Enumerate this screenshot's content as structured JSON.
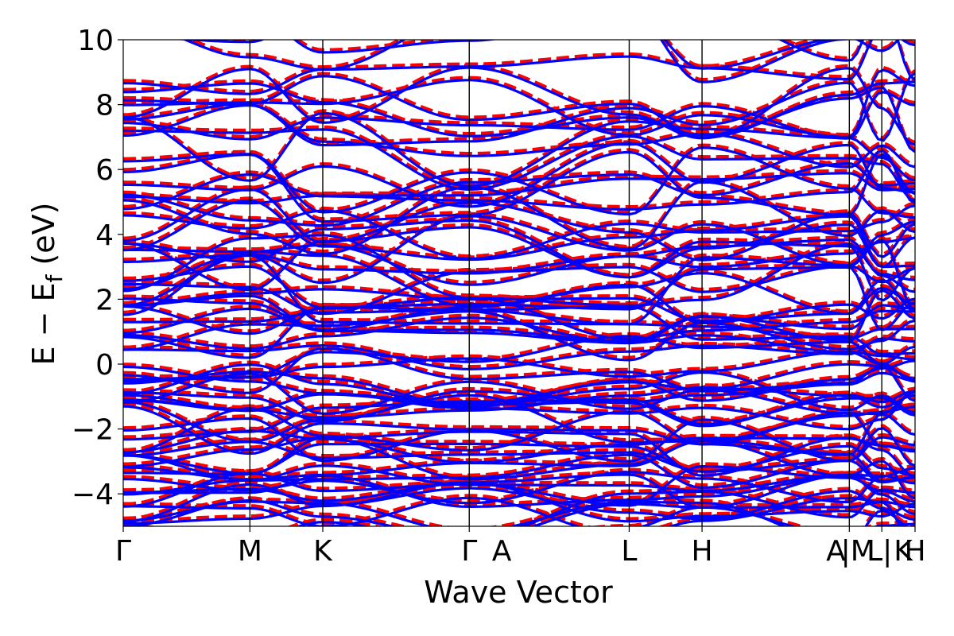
{
  "chart_data": {
    "type": "line",
    "title": "",
    "xlabel": "Wave Vector",
    "ylabel": "E − E_f (eV)",
    "ylabel_main": "E − E",
    "ylabel_sub": "f",
    "ylabel_unit": " (eV)",
    "ylim": [
      -5,
      10
    ],
    "yticks": [
      -4,
      -2,
      0,
      2,
      4,
      6,
      8,
      10
    ],
    "ytick_labels": [
      "−4",
      "−2",
      "0",
      "2",
      "4",
      "6",
      "8",
      "10"
    ],
    "xlim": [
      0,
      1
    ],
    "grid": false,
    "legend": "none",
    "kpoints": [
      {
        "label": "Γ",
        "x": 0.0
      },
      {
        "label": "M",
        "x": 0.16
      },
      {
        "label": "K",
        "x": 0.252
      },
      {
        "label": "Γ|A",
        "x": 0.437,
        "labels": [
          "Γ",
          "A"
        ]
      },
      {
        "label": "L",
        "x": 0.639
      },
      {
        "label": "H",
        "x": 0.731
      },
      {
        "label": "A|M",
        "x": 0.917,
        "labels": [
          "A",
          "M"
        ]
      },
      {
        "label": "L|K",
        "x": 0.958,
        "labels": [
          "L",
          "K"
        ]
      },
      {
        "label": "H",
        "x": 1.0
      }
    ],
    "kpath_tick_labels": [
      {
        "text": "Γ",
        "x": 0.0
      },
      {
        "text": "M",
        "x": 0.16
      },
      {
        "text": "K",
        "x": 0.252
      },
      {
        "text": "Γ",
        "x": 0.437
      },
      {
        "text": "A",
        "x": 0.478
      },
      {
        "text": "L",
        "x": 0.639
      },
      {
        "text": "H",
        "x": 0.731
      },
      {
        "text": "A",
        "x": 0.9
      },
      {
        "text": "|M",
        "x": 0.928
      },
      {
        "text": "L|",
        "x": 0.955
      },
      {
        "text": "K",
        "x": 0.985
      },
      {
        "text": "H",
        "x": 1.0
      }
    ],
    "series": [
      {
        "color": "#0000ff",
        "style": "solid"
      },
      {
        "color": "#ff0000",
        "style": "dashed"
      }
    ],
    "colors": {
      "blue": "#0000ff",
      "red": "#ff0000"
    }
  }
}
